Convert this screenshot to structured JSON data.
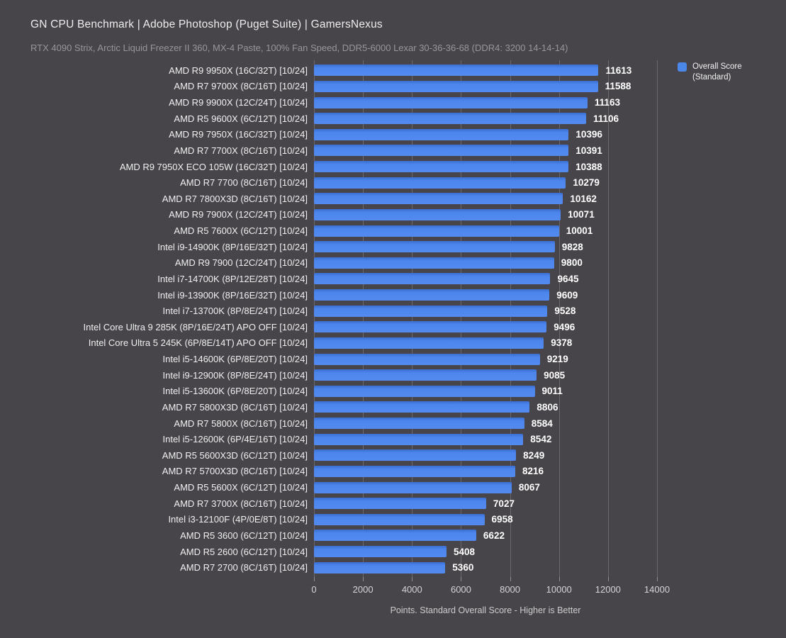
{
  "title": "GN CPU Benchmark | Adobe Photoshop (Puget Suite) | GamersNexus",
  "subtitle": "RTX 4090 Strix, Arctic Liquid Freezer II 360, MX-4 Paste, 100% Fan Speed, DDR5-6000 Lexar 30-36-36-68 (DDR4: 3200 14-14-14)",
  "legend": {
    "label": "Overall Score (Standard)",
    "swatch_color": "#4b86e9"
  },
  "colors": {
    "background": "#474549",
    "bar_blue": "#4b86e9",
    "gridline": "#6b696e",
    "title_text": "#ededee",
    "subtitle_text": "#98969a",
    "label_text": "#f0f0f1",
    "value_text": "#ffffff"
  },
  "chart_data": {
    "type": "bar",
    "orientation": "horizontal",
    "title": "GN CPU Benchmark | Adobe Photoshop (Puget Suite) | GamersNexus",
    "subtitle": "RTX 4090 Strix, Arctic Liquid Freezer II 360, MX-4 Paste, 100% Fan Speed, DDR5-6000 Lexar 30-36-36-68 (DDR4: 3200 14-14-14)",
    "xlabel": "Points. Standard Overall Score - Higher is Better",
    "xlim": [
      0,
      14000
    ],
    "xticks": [
      0,
      2000,
      4000,
      6000,
      8000,
      10000,
      12000,
      14000
    ],
    "grid": true,
    "legend_position": "top-right",
    "legend_label": "Overall Score (Standard)",
    "categories": [
      "AMD R9 9950X (16C/32T) [10/24]",
      "AMD R7 9700X (8C/16T) [10/24]",
      "AMD R9 9900X (12C/24T) [10/24]",
      "AMD R5 9600X (6C/12T) [10/24]",
      "AMD R9 7950X (16C/32T) [10/24]",
      "AMD R7 7700X (8C/16T) [10/24]",
      "AMD R9 7950X ECO 105W (16C/32T) [10/24]",
      "AMD R7 7700 (8C/16T) [10/24]",
      "AMD R7 7800X3D (8C/16T) [10/24]",
      "AMD R9 7900X (12C/24T) [10/24]",
      "AMD R5 7600X (6C/12T) [10/24]",
      "Intel i9-14900K (8P/16E/32T) [10/24]",
      "AMD R9 7900 (12C/24T) [10/24]",
      "Intel i7-14700K (8P/12E/28T) [10/24]",
      "Intel i9-13900K (8P/16E/32T) [10/24]",
      "Intel i7-13700K (8P/8E/24T) [10/24]",
      "Intel Core Ultra 9 285K (8P/16E/24T) APO OFF [10/24]",
      "Intel Core Ultra 5 245K (6P/8E/14T) APO OFF [10/24]",
      "Intel i5-14600K (6P/8E/20T) [10/24]",
      "Intel i9-12900K (8P/8E/24T) [10/24]",
      "Intel i5-13600K (6P/8E/20T) [10/24]",
      "AMD R7 5800X3D (8C/16T) [10/24]",
      "AMD R7 5800X (8C/16T) [10/24]",
      "Intel i5-12600K (6P/4E/16T) [10/24]",
      "AMD R5 5600X3D (6C/12T) [10/24]",
      "AMD R7 5700X3D (8C/16T) [10/24]",
      "AMD R5 5600X (6C/12T) [10/24]",
      "AMD R7 3700X (8C/16T) [10/24]",
      "Intel i3-12100F (4P/0E/8T) [10/24]",
      "AMD R5 3600 (6C/12T) [10/24]",
      "AMD R5 2600 (6C/12T) [10/24]",
      "AMD R7 2700 (8C/16T) [10/24]"
    ],
    "values": [
      11613,
      11588,
      11163,
      11106,
      10396,
      10391,
      10388,
      10279,
      10162,
      10071,
      10001,
      9828,
      9800,
      9645,
      9609,
      9528,
      9496,
      9378,
      9219,
      9085,
      9011,
      8806,
      8584,
      8542,
      8249,
      8216,
      8067,
      7027,
      6958,
      6622,
      5408,
      5360
    ]
  }
}
